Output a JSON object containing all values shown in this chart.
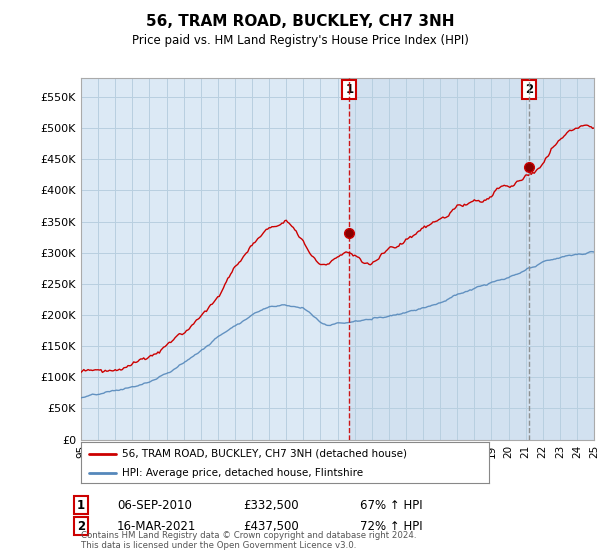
{
  "title": "56, TRAM ROAD, BUCKLEY, CH7 3NH",
  "subtitle": "Price paid vs. HM Land Registry's House Price Index (HPI)",
  "ylim": [
    0,
    580000
  ],
  "yticks": [
    0,
    50000,
    100000,
    150000,
    200000,
    250000,
    300000,
    350000,
    400000,
    450000,
    500000,
    550000
  ],
  "background_color": "#ffffff",
  "plot_bg_color": "#dce9f5",
  "grid_color": "#b8cfe0",
  "red_line_color": "#cc0000",
  "blue_line_color": "#5588bb",
  "marker1_date_x": 2010.7,
  "marker1_price": 332500,
  "marker2_date_x": 2021.2,
  "marker2_price": 437500,
  "shade_from": 2010.7,
  "shade_to": 2025,
  "legend_line1": "56, TRAM ROAD, BUCKLEY, CH7 3NH (detached house)",
  "legend_line2": "HPI: Average price, detached house, Flintshire",
  "note1_num": "1",
  "note1_date": "06-SEP-2010",
  "note1_price": "£332,500",
  "note1_hpi": "67% ↑ HPI",
  "note2_num": "2",
  "note2_date": "16-MAR-2021",
  "note2_price": "£437,500",
  "note2_hpi": "72% ↑ HPI",
  "footnote": "Contains HM Land Registry data © Crown copyright and database right 2024.\nThis data is licensed under the Open Government Licence v3.0.",
  "xmin": 1995,
  "xmax": 2025,
  "hpi_knots_x": [
    1995,
    1996,
    1997,
    1998,
    1999,
    2000,
    2001,
    2002,
    2003,
    2004,
    2005,
    2006,
    2007,
    2008,
    2008.5,
    2009,
    2009.5,
    2010,
    2010.5,
    2011,
    2011.5,
    2012,
    2013,
    2014,
    2015,
    2016,
    2017,
    2018,
    2019,
    2019.5,
    2020,
    2020.5,
    2021,
    2021.5,
    2022,
    2022.5,
    2023,
    2023.5,
    2024,
    2024.5,
    2025
  ],
  "hpi_knots_y": [
    67000,
    70000,
    74000,
    80000,
    88000,
    100000,
    118000,
    138000,
    160000,
    182000,
    200000,
    215000,
    220000,
    215000,
    205000,
    193000,
    188000,
    192000,
    193000,
    195000,
    197000,
    198000,
    205000,
    213000,
    222000,
    232000,
    244000,
    254000,
    262000,
    265000,
    268000,
    272000,
    278000,
    282000,
    288000,
    292000,
    296000,
    298000,
    300000,
    302000,
    305000
  ],
  "red_knots_x": [
    1995,
    1996,
    1997,
    1998,
    1999,
    2000,
    2001,
    2002,
    2003,
    2004,
    2005,
    2006,
    2007,
    2007.5,
    2008,
    2008.5,
    2009,
    2009.5,
    2010,
    2010.5,
    2010.7,
    2011,
    2011.5,
    2012,
    2012.5,
    2013,
    2013.5,
    2014,
    2014.5,
    2015,
    2015.5,
    2016,
    2016.5,
    2017,
    2017.5,
    2018,
    2018.5,
    2019,
    2019.5,
    2020,
    2020.5,
    2021,
    2021.2,
    2021.5,
    2022,
    2022.5,
    2023,
    2023.5,
    2024,
    2024.5,
    2025
  ],
  "red_knots_y": [
    108000,
    112000,
    118000,
    125000,
    133000,
    147000,
    168000,
    200000,
    240000,
    285000,
    318000,
    348000,
    368000,
    358000,
    340000,
    322000,
    308000,
    315000,
    325000,
    330000,
    332500,
    328000,
    320000,
    322000,
    328000,
    335000,
    342000,
    350000,
    358000,
    368000,
    375000,
    382000,
    388000,
    395000,
    400000,
    405000,
    408000,
    412000,
    418000,
    422000,
    428000,
    435000,
    437500,
    445000,
    460000,
    475000,
    490000,
    505000,
    515000,
    520000,
    518000
  ]
}
